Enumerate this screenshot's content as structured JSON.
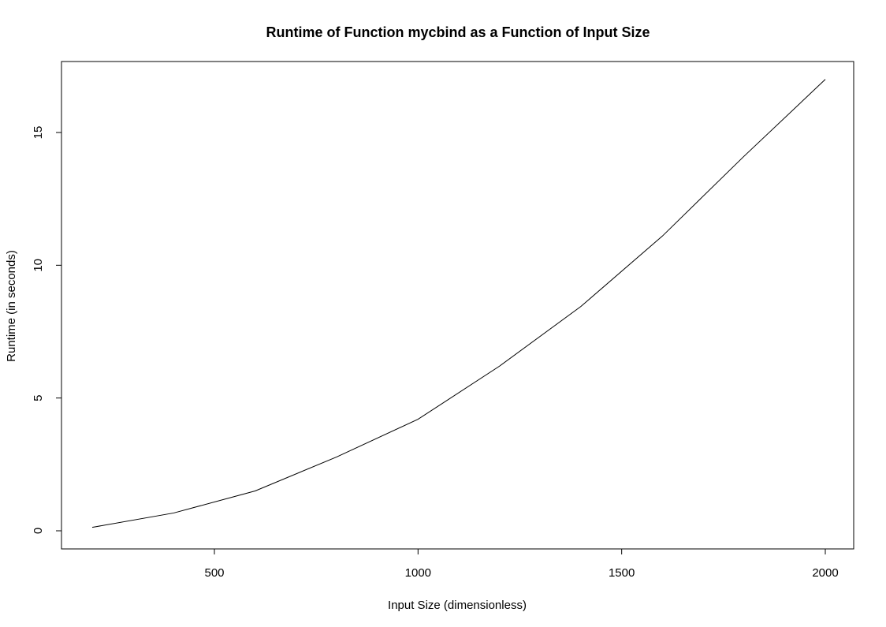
{
  "chart_data": {
    "type": "line",
    "title": "Runtime of Function mycbind as a Function of Input Size",
    "xlabel": "Input Size (dimensionless)",
    "ylabel": "Runtime (in seconds)",
    "xlim": [
      200,
      2000
    ],
    "ylim": [
      0,
      17
    ],
    "x_ticks": [
      500,
      1000,
      1500,
      2000
    ],
    "y_ticks": [
      0,
      5,
      10,
      15
    ],
    "grid": false,
    "legend": "none",
    "series": [
      {
        "x": [
          200,
          400,
          600,
          800,
          1000,
          1200,
          1400,
          1600,
          1800,
          2000
        ],
        "y": [
          0.13,
          0.67,
          1.5,
          2.78,
          4.2,
          6.2,
          8.45,
          11.1,
          14.1,
          17.0
        ],
        "color": "#000000"
      }
    ]
  }
}
